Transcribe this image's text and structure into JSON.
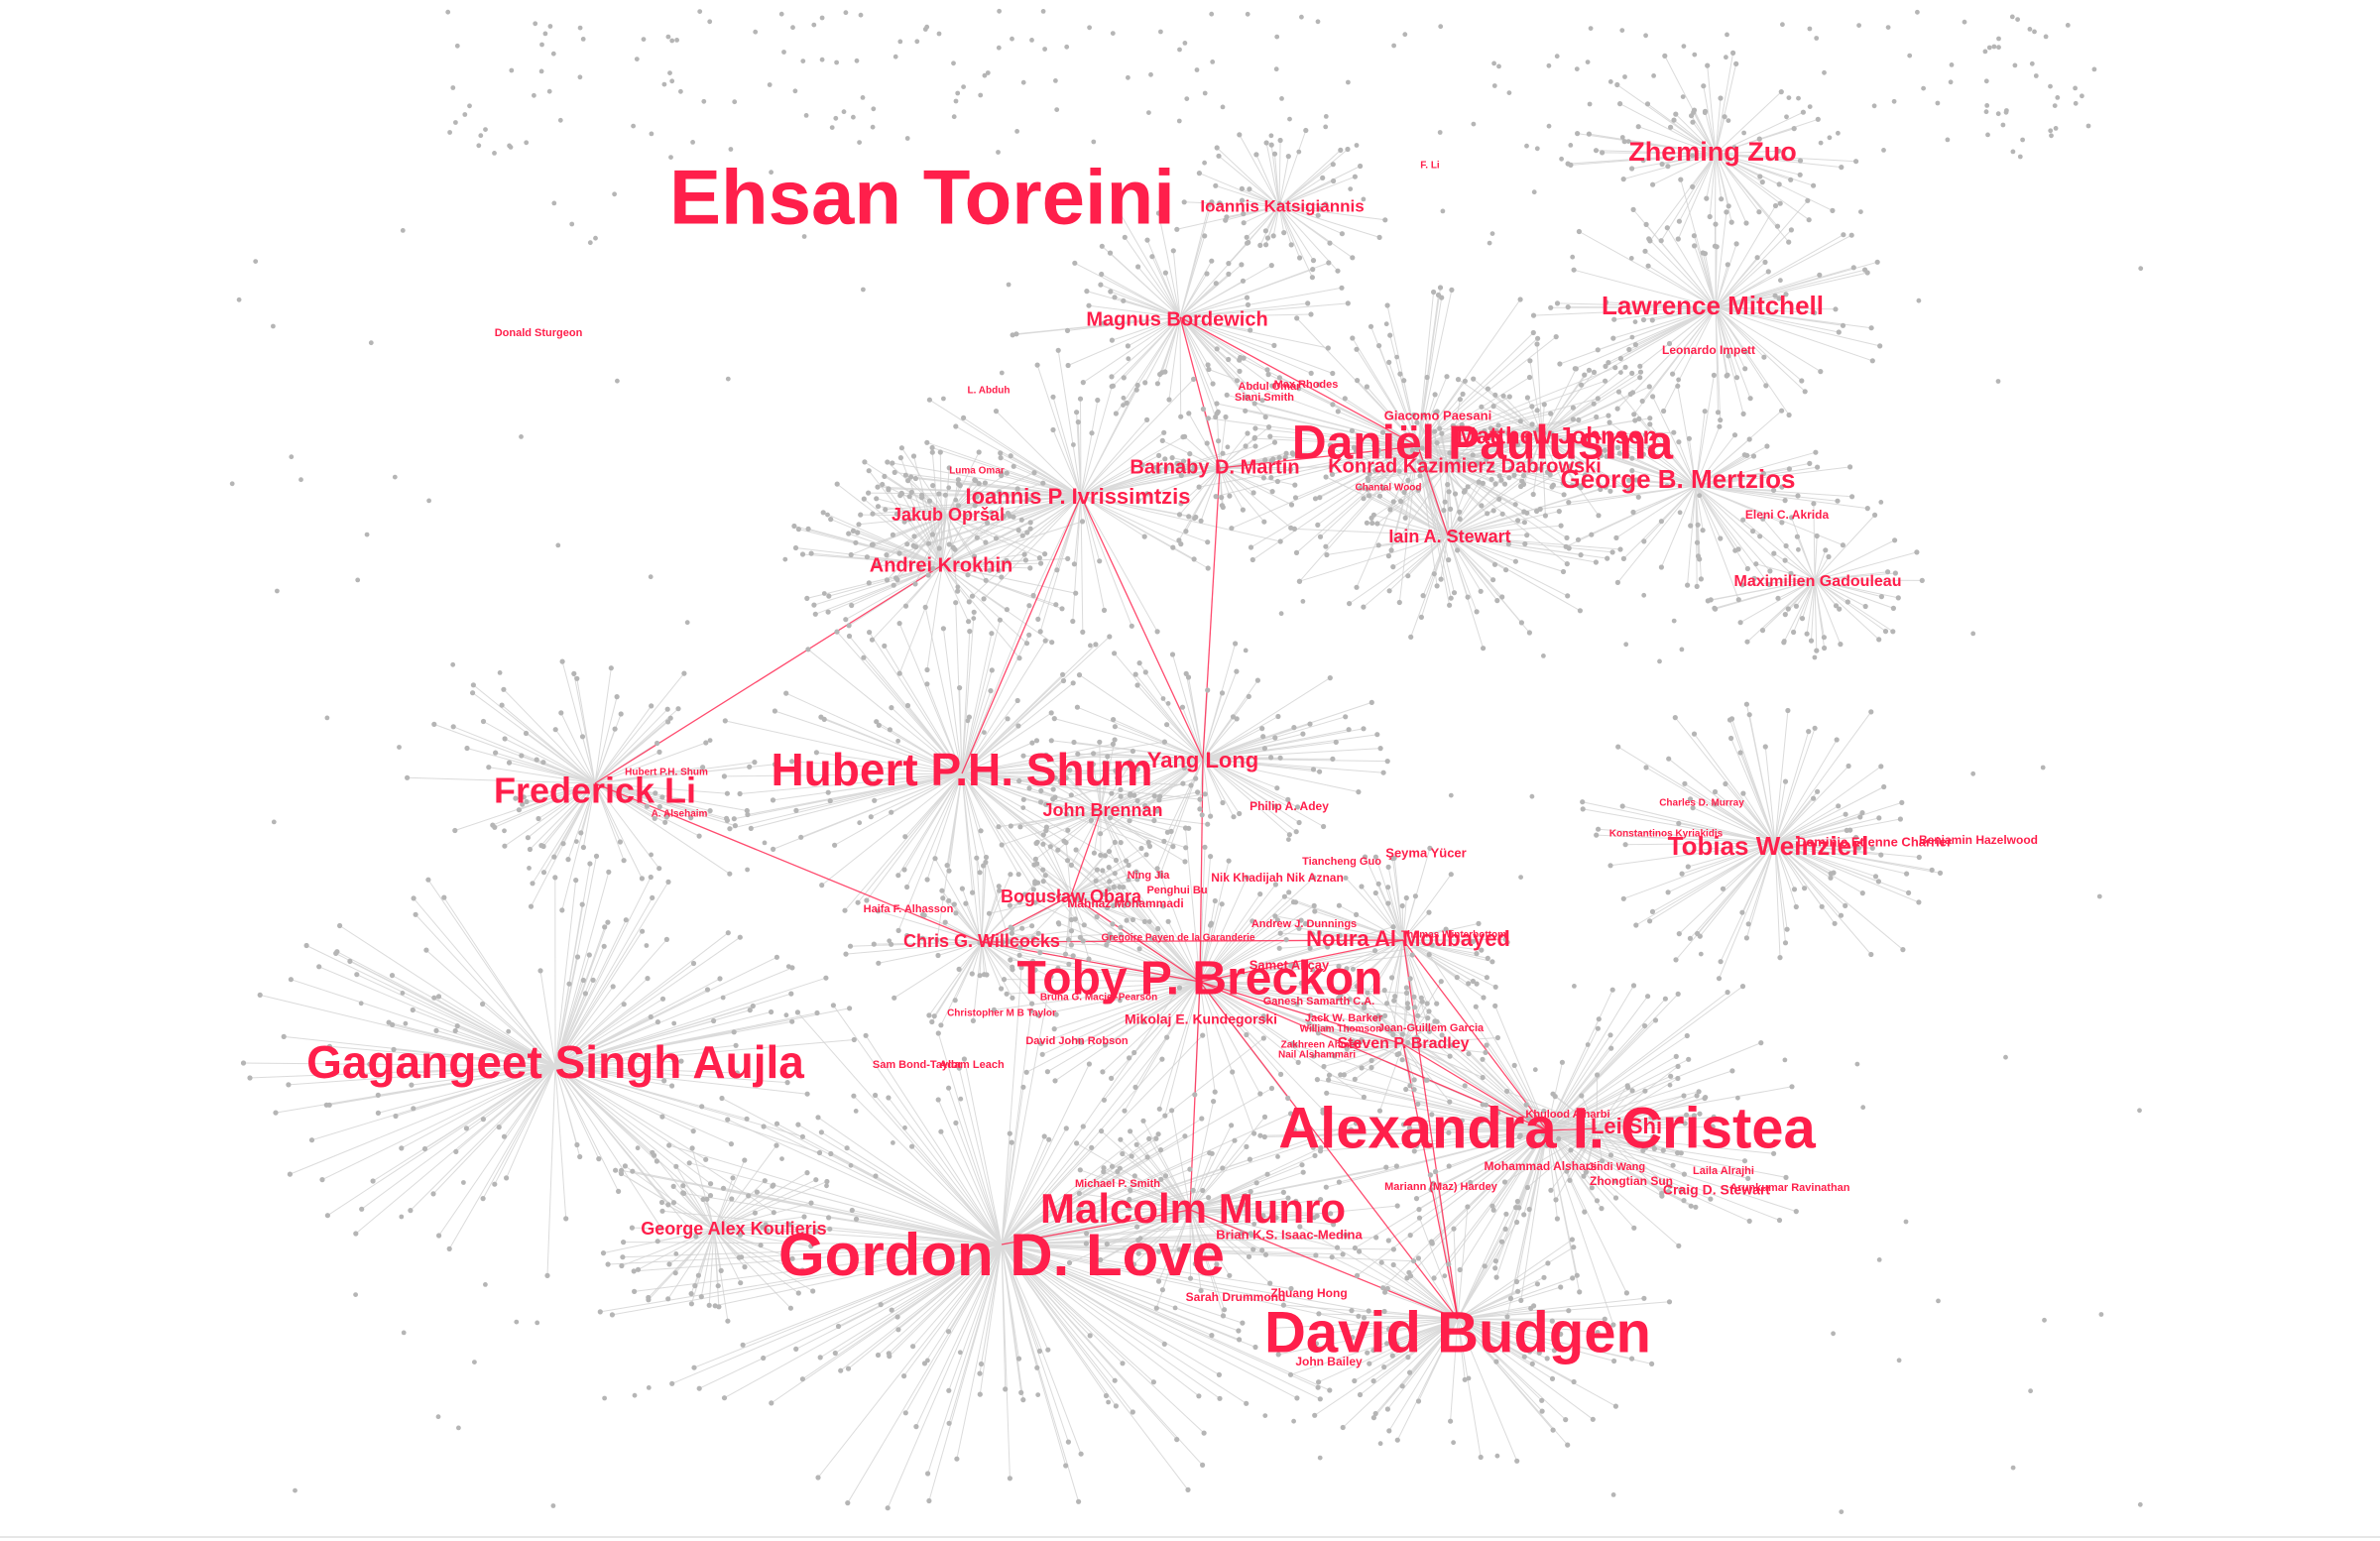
{
  "colors": {
    "label": "#ff1f4b",
    "node": "#b5b5b5",
    "edge": "#cfcfcf",
    "highlight_edge": "#ff1f4b",
    "background": "#ffffff"
  },
  "hubs": [
    {
      "id": "ehsan_toreini",
      "name": "Ehsan Toreini"
    },
    {
      "id": "gordon_love",
      "name": "Gordon D. Love"
    },
    {
      "id": "alexandra_cristea",
      "name": "Alexandra I. Cristea"
    },
    {
      "id": "david_budgen",
      "name": "David Budgen"
    },
    {
      "id": "toby_breckon",
      "name": "Toby P. Breckon"
    },
    {
      "id": "daniel_paulusma",
      "name": "Daniël Paulusma"
    },
    {
      "id": "gagangeet_aujla",
      "name": "Gagangeet Singh Aujla"
    },
    {
      "id": "hubert_shum",
      "name": "Hubert P.H. Shum"
    },
    {
      "id": "malcolm_munro",
      "name": "Malcolm Munro"
    },
    {
      "id": "frederick_li",
      "name": "Frederick Li"
    },
    {
      "id": "tobias_weinzierl",
      "name": "Tobias Weinzierl"
    },
    {
      "id": "zheming_zuo",
      "name": "Zheming Zuo"
    },
    {
      "id": "lawrence_mitchell",
      "name": "Lawrence Mitchell"
    },
    {
      "id": "george_mertzios",
      "name": "George B. Mertzios"
    },
    {
      "id": "magnus_bordewich",
      "name": "Magnus Bordewich"
    },
    {
      "id": "ioannis_ivrissimtzis",
      "name": "Ioannis P. Ivrissimtzis"
    },
    {
      "id": "andrei_krokhin",
      "name": "Andrei Krokhin"
    },
    {
      "id": "jakub_oprsal",
      "name": "Jakub Opršal"
    },
    {
      "id": "iain_stewart",
      "name": "Iain A. Stewart"
    },
    {
      "id": "matthew_johnson",
      "name": "Matthew Johnson"
    },
    {
      "id": "yang_long",
      "name": "Yang Long"
    },
    {
      "id": "john_brennan",
      "name": "John Brennan"
    },
    {
      "id": "noura_almoubayed",
      "name": "Noura Al Moubayed"
    },
    {
      "id": "chris_willcocks",
      "name": "Chris G. Willcocks"
    },
    {
      "id": "boguslaw_obara",
      "name": "Bogusław Obara"
    },
    {
      "id": "george_koulieris",
      "name": "George Alex Koulieris"
    },
    {
      "id": "maximilien_gadouleau",
      "name": "Maximilien Gadouleau"
    },
    {
      "id": "barnaby_martin",
      "name": "Barnaby D. Martin"
    },
    {
      "id": "konrad_dabrowski",
      "name": "Konrad Kazimierz Dabrowski"
    },
    {
      "id": "lei_shi",
      "name": "Lei Shi"
    },
    {
      "id": "steven_bradley",
      "name": "Steven P. Bradley"
    },
    {
      "id": "ioannis_katsigiannis",
      "name": "Ioannis Katsigiannis"
    }
  ],
  "people": [
    {
      "id": "ehsan_toreini",
      "name": "Ehsan Toreini",
      "tier": 1
    },
    {
      "id": "gordon_love",
      "name": "Gordon D. Love",
      "tier": 1
    },
    {
      "id": "alexandra_cristea",
      "name": "Alexandra I. Cristea",
      "tier": 1
    },
    {
      "id": "david_budgen",
      "name": "David Budgen",
      "tier": 1
    },
    {
      "id": "toby_breckon",
      "name": "Toby P. Breckon",
      "tier": 2
    },
    {
      "id": "daniel_paulusma",
      "name": "Daniël Paulusma",
      "tier": 2
    },
    {
      "id": "gagangeet_aujla",
      "name": "Gagangeet Singh Aujla",
      "tier": 2
    },
    {
      "id": "hubert_shum",
      "name": "Hubert P.H. Shum",
      "tier": 2
    },
    {
      "id": "malcolm_munro",
      "name": "Malcolm Munro",
      "tier": 2
    },
    {
      "id": "frederick_li",
      "name": "Frederick Li",
      "tier": 3
    },
    {
      "id": "tobias_weinzierl",
      "name": "Tobias Weinzierl",
      "tier": 4
    },
    {
      "id": "zheming_zuo",
      "name": "Zheming Zuo",
      "tier": 4
    },
    {
      "id": "lawrence_mitchell",
      "name": "Lawrence Mitchell",
      "tier": 4
    },
    {
      "id": "george_mertzios",
      "name": "George B. Mertzios",
      "tier": 4
    },
    {
      "id": "magnus_bordewich",
      "name": "Magnus Bordewich",
      "tier": 5
    },
    {
      "id": "ioannis_ivrissimtzis",
      "name": "Ioannis P. Ivrissimtzis",
      "tier": 5
    },
    {
      "id": "andrei_krokhin",
      "name": "Andrei Krokhin",
      "tier": 5
    },
    {
      "id": "jakub_oprsal",
      "name": "Jakub Opršal",
      "tier": 5
    },
    {
      "id": "iain_stewart",
      "name": "Iain A. Stewart",
      "tier": 5
    },
    {
      "id": "matthew_johnson",
      "name": "Matthew Johnson",
      "tier": 4
    },
    {
      "id": "yang_long",
      "name": "Yang Long",
      "tier": 5
    },
    {
      "id": "john_brennan",
      "name": "John Brennan",
      "tier": 5
    },
    {
      "id": "noura_almoubayed",
      "name": "Noura Al Moubayed",
      "tier": 5
    },
    {
      "id": "chris_willcocks",
      "name": "Chris G. Willcocks",
      "tier": 5
    },
    {
      "id": "boguslaw_obara",
      "name": "Bogusław Obara",
      "tier": 5
    },
    {
      "id": "george_koulieris",
      "name": "George Alex Koulieris",
      "tier": 5
    },
    {
      "id": "maximilien_gadouleau",
      "name": "Maximilien Gadouleau",
      "tier": 6
    },
    {
      "id": "barnaby_martin",
      "name": "Barnaby D. Martin",
      "tier": 5
    },
    {
      "id": "konrad_dabrowski",
      "name": "Konrad Kazimierz Dabrowski",
      "tier": 5
    },
    {
      "id": "lei_shi",
      "name": "Lei Shi",
      "tier": 5
    },
    {
      "id": "steven_bradley",
      "name": "Steven P. Bradley",
      "tier": 6
    },
    {
      "id": "ioannis_katsigiannis",
      "name": "Ioannis Katsigiannis",
      "tier": 6
    },
    {
      "id": "donald_sturgeon",
      "name": "Donald Sturgeon",
      "tier": 7
    },
    {
      "id": "leonardo_impett",
      "name": "Leonardo Impett",
      "tier": 7
    },
    {
      "id": "eleni_akrida",
      "name": "Eleni C. Akrida",
      "tier": 7
    },
    {
      "id": "giacomo_paesani",
      "name": "Giacomo Paesani",
      "tier": 7
    },
    {
      "id": "l_abduh",
      "name": "L. Abduh",
      "tier": 7
    },
    {
      "id": "luma_omar",
      "name": "Luma Omar",
      "tier": 7
    },
    {
      "id": "abdul_omar",
      "name": "Abdul Omar",
      "tier": 7
    },
    {
      "id": "max_rhodes",
      "name": "Max Rhodes",
      "tier": 7
    },
    {
      "id": "siani_smith",
      "name": "Siani Smith",
      "tier": 7
    },
    {
      "id": "chantal_wood",
      "name": "Chantal Wood",
      "tier": 7
    },
    {
      "id": "f_li",
      "name": "F. Li",
      "tier": 7
    },
    {
      "id": "hubert_shum_small",
      "name": "Hubert P.H. Shum",
      "tier": 7
    },
    {
      "id": "a_alsehaim",
      "name": "A. Alsehaim",
      "tier": 7
    },
    {
      "id": "philip_adey",
      "name": "Philip A. Adey",
      "tier": 7
    },
    {
      "id": "charles_murray",
      "name": "Charles D. Murray",
      "tier": 7
    },
    {
      "id": "konstantinos",
      "name": "Konstantinos Kyriakidis",
      "tier": 7
    },
    {
      "id": "dominic_charrier",
      "name": "Dominic Etienne Charrier",
      "tier": 7
    },
    {
      "id": "benjamin_hazelwood",
      "name": "Benjamin Hazelwood",
      "tier": 7
    },
    {
      "id": "tiancheng_guo",
      "name": "Tiancheng Guo",
      "tier": 7
    },
    {
      "id": "seyma_yucer",
      "name": "Şeyma Yücer",
      "tier": 7
    },
    {
      "id": "ning_jia",
      "name": "Ning Jia",
      "tier": 7
    },
    {
      "id": "penghui_bu",
      "name": "Penghui Bu",
      "tier": 7
    },
    {
      "id": "nik_aznan",
      "name": "Nik Khadijah Nik Aznan",
      "tier": 7
    },
    {
      "id": "mahnaz_mohammadi",
      "name": "Mahnaz Mohammadi",
      "tier": 7
    },
    {
      "id": "halfa_alhasson",
      "name": "Haifa F. Alhasson",
      "tier": 7
    },
    {
      "id": "andrew_dunnings",
      "name": "Andrew J. Dunnings",
      "tier": 7
    },
    {
      "id": "gregoire_garanderie",
      "name": "Gregoire Payen de la Garanderie",
      "tier": 7
    },
    {
      "id": "thomas_winterbottom",
      "name": "Thomas Winterbottom",
      "tier": 7
    },
    {
      "id": "samet_akcay",
      "name": "Samet Akçay",
      "tier": 7
    },
    {
      "id": "ganesh_samarth",
      "name": "Ganesh Samarth C.A.",
      "tier": 7
    },
    {
      "id": "bruna_pearson",
      "name": "Bruna G. Maciel-Pearson",
      "tier": 7
    },
    {
      "id": "christopher_taylor",
      "name": "Christopher M B Taylor",
      "tier": 7
    },
    {
      "id": "mikolaj_kundegorski",
      "name": "Mikolaj E. Kundegorski",
      "tier": 6
    },
    {
      "id": "jack_barker",
      "name": "Jack W. Barker",
      "tier": 7
    },
    {
      "id": "william_thomson",
      "name": "William Thomson",
      "tier": 7
    },
    {
      "id": "jean_garcia",
      "name": "Jean-Guillem Garcia",
      "tier": 7
    },
    {
      "id": "zakhreen",
      "name": "Zakhreen Ahmed",
      "tier": 7
    },
    {
      "id": "nail_alshammari",
      "name": "Nail Alshammari",
      "tier": 7
    },
    {
      "id": "david_robson",
      "name": "David John Robson",
      "tier": 7
    },
    {
      "id": "sam_bond",
      "name": "Sam Bond-Taylor",
      "tier": 7
    },
    {
      "id": "adam_leach",
      "name": "Adam Leach",
      "tier": 7
    },
    {
      "id": "michael_smith",
      "name": "Michael P. Smith",
      "tier": 7
    },
    {
      "id": "brian_medina",
      "name": "Brian K.S. Isaac-Medina",
      "tier": 6
    },
    {
      "id": "sarah_drummond",
      "name": "Sarah Drummond",
      "tier": 7
    },
    {
      "id": "zhuang_hong",
      "name": "Zhuang Hong",
      "tier": 7
    },
    {
      "id": "john_bailey",
      "name": "John Bailey",
      "tier": 7
    },
    {
      "id": "khulood_alharbi",
      "name": "Khulood Alharbi",
      "tier": 7
    },
    {
      "id": "mohammad_alsharsi",
      "name": "Mohammad Alsharsi",
      "tier": 7
    },
    {
      "id": "zhongtian_sun",
      "name": "Zhongtian Sun",
      "tier": 7
    },
    {
      "id": "laila_alrajhi",
      "name": "Laila Alrajhi",
      "tier": 7
    },
    {
      "id": "craig_stewart",
      "name": "Craig D. Stewart",
      "tier": 7
    },
    {
      "id": "mariann_hardey",
      "name": "Mariann (Maz) Hardey",
      "tier": 7
    },
    {
      "id": "jindi_wang",
      "name": "Jindi Wang",
      "tier": 7
    },
    {
      "id": "arun_kumar",
      "name": "Arunkumar Ravinathan",
      "tier": 7
    }
  ],
  "highlight_links": [
    [
      "toby_breckon",
      "chris_willcocks"
    ],
    [
      "toby_breckon",
      "noura_almoubayed"
    ],
    [
      "toby_breckon",
      "alexandra_cristea"
    ],
    [
      "toby_breckon",
      "david_budgen"
    ],
    [
      "toby_breckon",
      "malcolm_munro"
    ],
    [
      "toby_breckon",
      "yang_long"
    ],
    [
      "toby_breckon",
      "boguslaw_obara"
    ],
    [
      "toby_breckon",
      "steven_bradley"
    ],
    [
      "hubert_shum",
      "ioannis_ivrissimtzis"
    ],
    [
      "frederick_li",
      "andrei_krokhin"
    ],
    [
      "frederick_li",
      "chris_willcocks"
    ],
    [
      "yang_long",
      "ioannis_ivrissimtzis"
    ],
    [
      "yang_long",
      "barnaby_martin"
    ],
    [
      "daniel_paulusma",
      "magnus_bordewich"
    ],
    [
      "daniel_paulusma",
      "iain_stewart"
    ],
    [
      "daniel_paulusma",
      "barnaby_martin"
    ],
    [
      "alexandra_cristea",
      "noura_almoubayed"
    ],
    [
      "alexandra_cristea",
      "lei_shi"
    ],
    [
      "alexandra_cristea",
      "steven_bradley"
    ],
    [
      "david_budgen",
      "malcolm_munro"
    ],
    [
      "david_budgen",
      "steven_bradley"
    ],
    [
      "david_budgen",
      "noura_almoubayed"
    ],
    [
      "chris_willcocks",
      "boguslaw_obara"
    ],
    [
      "chris_willcocks",
      "noura_almoubayed"
    ],
    [
      "john_brennan",
      "boguslaw_obara"
    ],
    [
      "magnus_bordewich",
      "barnaby_martin"
    ],
    [
      "gordon_love",
      "malcolm_munro"
    ]
  ]
}
